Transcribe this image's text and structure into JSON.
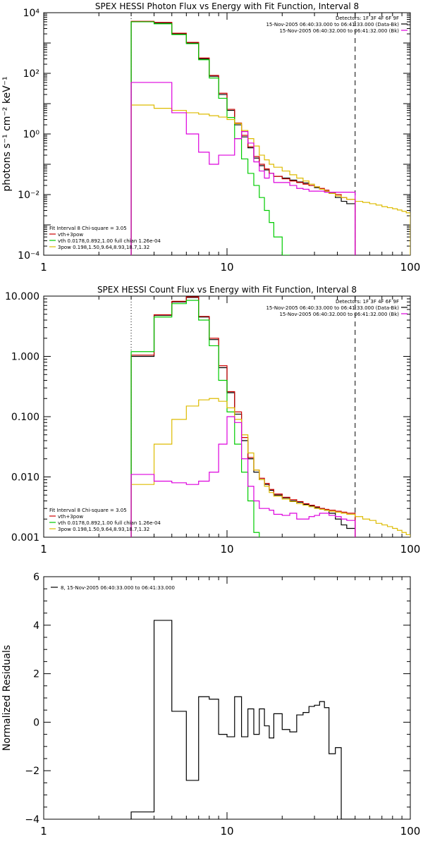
{
  "chart_data": [
    {
      "type": "line",
      "title": "SPEX HESSI Photon Flux vs Energy with Fit Function, Interval 8",
      "xlabel": "",
      "ylabel": "photons s⁻¹ cm⁻² keV⁻¹",
      "x_scale": "log",
      "y_scale": "log",
      "xlim": [
        1,
        100
      ],
      "ylim": [
        0.0001,
        10000
      ],
      "x_ticks": [
        {
          "v": 1,
          "label": "1"
        },
        {
          "v": 10,
          "label": "10"
        },
        {
          "v": 100,
          "label": "100"
        }
      ],
      "y_ticks": [
        {
          "v": 0.0001,
          "label": "10⁻⁴"
        },
        {
          "v": 0.01,
          "label": "10⁻²"
        },
        {
          "v": 1,
          "label": "10⁰"
        },
        {
          "v": 100,
          "label": "10²"
        },
        {
          "v": 10000,
          "label": "10⁴"
        }
      ],
      "legend_top_right": {
        "lines": [
          "Detectors: 1F 3F 4F 6F 9F",
          "15-Nov-2005 06:40:33.000 to 06:41:33.000 (Data-Bk)",
          "15-Nov-2005 06:40:32.000 to 06:41:32.000 (Bk)"
        ],
        "colors": [
          "#000000",
          "#000000",
          "#dd00dd"
        ]
      },
      "legend_bottom_left": {
        "lines": [
          "Fit Interval 8   Chi-square = 3.05",
          "vth+3pow",
          "vth 0.0178,0.892,1.00  full chian 1.26e-04",
          "3pow 0.198,1.50,9.64,8.93,18.7,1.32"
        ],
        "colors": [
          "#000000",
          "#cc0000",
          "#00cc00",
          "#ddbb00"
        ]
      },
      "vlines": [
        {
          "x": 3,
          "style": "dotted",
          "color": "#000000"
        },
        {
          "x": 50,
          "style": "dashed",
          "color": "#000000"
        }
      ],
      "edges": [
        3,
        4,
        5,
        6,
        7,
        8,
        9,
        10,
        11,
        12,
        13,
        14,
        15,
        16,
        17,
        18,
        20,
        22,
        24,
        26,
        28,
        30,
        32,
        34,
        36,
        39,
        42,
        45,
        50,
        55,
        60,
        65,
        70,
        75,
        80,
        85,
        90,
        95,
        100
      ],
      "series": [
        {
          "name": "Data-Bk",
          "color": "#000000",
          "values": [
            5000,
            4500,
            2000,
            1000,
            300,
            80,
            20,
            6,
            2,
            0.8,
            0.35,
            0.16,
            0.09,
            0.065,
            0.05,
            0.04,
            0.035,
            0.03,
            0.026,
            0.024,
            0.02,
            0.017,
            0.015,
            0.013,
            0.011,
            0.008,
            0.006,
            0.005
          ]
        },
        {
          "name": "vth+3pow",
          "color": "#cc0000",
          "values": [
            5200,
            4800,
            2100,
            1050,
            320,
            85,
            22,
            6.5,
            2.3,
            0.9,
            0.38,
            0.18,
            0.1,
            0.07,
            0.05,
            0.04,
            0.033,
            0.028,
            0.025,
            0.022,
            0.02,
            0.018,
            0.016,
            0.014,
            0.012,
            0.01,
            0.008,
            0.007
          ]
        },
        {
          "name": "vth",
          "color": "#00cc00",
          "values": [
            5000,
            4300,
            1900,
            950,
            280,
            70,
            15,
            3.5,
            0.7,
            0.15,
            0.05,
            0.02,
            0.008,
            0.003,
            0.0012,
            0.0004,
            0.0001
          ]
        },
        {
          "name": "3pow",
          "color": "#ddbb00",
          "values": [
            9,
            7,
            6,
            5,
            4.5,
            4,
            3.6,
            3,
            2.2,
            1.3,
            0.7,
            0.4,
            0.2,
            0.14,
            0.1,
            0.08,
            0.06,
            0.045,
            0.035,
            0.028,
            0.022,
            0.018,
            0.015,
            0.013,
            0.011,
            0.009,
            0.008,
            0.007,
            0.006,
            0.0055,
            0.005,
            0.0045,
            0.004,
            0.0037,
            0.0034,
            0.0031,
            0.0028,
            0.0025
          ]
        },
        {
          "name": "Bk",
          "color": "#dd00dd",
          "values": [
            50,
            50,
            5,
            1,
            0.25,
            0.1,
            0.2,
            0.2,
            0.7,
            1.2,
            0.5,
            0.12,
            0.06,
            0.035,
            0.05,
            0.025,
            0.025,
            0.02,
            0.016,
            0.015,
            0.013,
            0.013,
            0.013,
            0.012,
            0.012,
            0.012,
            0.012,
            0.012
          ]
        }
      ]
    },
    {
      "type": "line",
      "title": "SPEX HESSI Count Flux vs Energy with Fit Function, Interval 8",
      "xlabel": "",
      "ylabel": "",
      "x_scale": "log",
      "y_scale": "log",
      "xlim": [
        1,
        100
      ],
      "ylim": [
        0.001,
        10
      ],
      "x_ticks": [
        {
          "v": 1,
          "label": "1"
        },
        {
          "v": 10,
          "label": "10"
        },
        {
          "v": 100,
          "label": "100"
        }
      ],
      "y_ticks": [
        {
          "v": 0.001,
          "label": "0.001"
        },
        {
          "v": 0.01,
          "label": "0.010"
        },
        {
          "v": 0.1,
          "label": "0.100"
        },
        {
          "v": 1,
          "label": "1.000"
        },
        {
          "v": 10,
          "label": "10.000"
        }
      ],
      "legend_top_right": {
        "lines": [
          "Detectors: 1F 3F 4F 6F 9F",
          "15-Nov-2005 06:40:33.000 to 06:41:33.000 (Data-Bk)",
          "15-Nov-2005 06:40:32.000 to 06:41:32.000 (Bk)"
        ],
        "colors": [
          "#000000",
          "#000000",
          "#dd00dd"
        ]
      },
      "legend_bottom_left": {
        "lines": [
          "Fit Interval 8   Chi-square = 3.05",
          "vth+3pow",
          "vth 0.0178,0.892,1.00  full chian 1.26e-04",
          "3pow 0.198,1.50,9.64,8.93,18.7,1.32"
        ],
        "colors": [
          "#000000",
          "#cc0000",
          "#00cc00",
          "#ddbb00"
        ]
      },
      "vlines": [
        {
          "x": 3,
          "style": "dotted",
          "color": "#000000"
        },
        {
          "x": 50,
          "style": "dashed",
          "color": "#000000"
        }
      ],
      "edges": [
        3,
        4,
        5,
        6,
        7,
        8,
        9,
        10,
        11,
        12,
        13,
        14,
        15,
        16,
        17,
        18,
        20,
        22,
        24,
        26,
        28,
        30,
        32,
        34,
        36,
        39,
        42,
        45,
        50,
        55,
        60,
        65,
        70,
        75,
        80,
        85,
        90,
        95,
        100
      ],
      "series": [
        {
          "name": "Data-Bk",
          "color": "#000000",
          "values": [
            1.0,
            4.8,
            8.0,
            9.5,
            4.5,
            1.9,
            0.65,
            0.25,
            0.11,
            0.04,
            0.02,
            0.012,
            0.009,
            0.0075,
            0.006,
            0.005,
            0.0045,
            0.004,
            0.0038,
            0.0035,
            0.0033,
            0.0031,
            0.003,
            0.0028,
            0.0025,
            0.002,
            0.0016,
            0.0014
          ]
        },
        {
          "name": "vth+3pow",
          "color": "#cc0000",
          "values": [
            1.05,
            4.9,
            8.2,
            9.7,
            4.6,
            2.0,
            0.7,
            0.26,
            0.12,
            0.045,
            0.021,
            0.013,
            0.0095,
            0.0078,
            0.0062,
            0.0052,
            0.0046,
            0.0042,
            0.0039,
            0.0036,
            0.0034,
            0.0032,
            0.003,
            0.0029,
            0.0028,
            0.0027,
            0.0026,
            0.0025
          ]
        },
        {
          "name": "vth",
          "color": "#00cc00",
          "values": [
            1.2,
            4.5,
            7.5,
            8.5,
            4.0,
            1.5,
            0.4,
            0.12,
            0.035,
            0.012,
            0.004,
            0.0012
          ]
        },
        {
          "name": "3pow",
          "color": "#ddbb00",
          "values": [
            0.0075,
            0.035,
            0.09,
            0.15,
            0.19,
            0.2,
            0.18,
            0.14,
            0.09,
            0.05,
            0.025,
            0.013,
            0.009,
            0.007,
            0.0055,
            0.0048,
            0.0043,
            0.0039,
            0.0036,
            0.0034,
            0.0032,
            0.003,
            0.0029,
            0.0028,
            0.0027,
            0.0026,
            0.0025,
            0.0024,
            0.0022,
            0.002,
            0.0019,
            0.0017,
            0.0016,
            0.0015,
            0.0014,
            0.0013,
            0.0012,
            0.0011
          ]
        },
        {
          "name": "Bk",
          "color": "#dd00dd",
          "values": [
            0.011,
            0.0085,
            0.008,
            0.0075,
            0.0085,
            0.012,
            0.035,
            0.1,
            0.08,
            0.02,
            0.007,
            0.004,
            0.003,
            0.003,
            0.0028,
            0.0024,
            0.0023,
            0.0025,
            0.002,
            0.002,
            0.0022,
            0.0023,
            0.0025,
            0.0025,
            0.0023,
            0.0022,
            0.002,
            0.0019
          ]
        }
      ]
    },
    {
      "type": "line",
      "title": "",
      "xlabel": "",
      "ylabel": "Normalized Residuals",
      "x_scale": "log",
      "y_scale": "linear",
      "xlim": [
        1,
        100
      ],
      "ylim": [
        -4,
        6
      ],
      "x_ticks": [
        {
          "v": 1,
          "label": "1"
        },
        {
          "v": 10,
          "label": "10"
        },
        {
          "v": 100,
          "label": "100"
        }
      ],
      "y_ticks": [
        {
          "v": -4,
          "label": "−4"
        },
        {
          "v": -2,
          "label": "−2"
        },
        {
          "v": 0,
          "label": "0"
        },
        {
          "v": 2,
          "label": "2"
        },
        {
          "v": 4,
          "label": "4"
        },
        {
          "v": 6,
          "label": "6"
        }
      ],
      "legend_top_left": {
        "lines": [
          "8, 15-Nov-2005 06:40:33.000 to 06:41:33.000"
        ],
        "colors": [
          "#000000"
        ]
      },
      "edges": [
        3,
        4,
        5,
        6,
        7,
        8,
        9,
        10,
        11,
        12,
        13,
        14,
        15,
        16,
        17,
        18,
        20,
        22,
        24,
        26,
        28,
        30,
        32,
        34,
        36,
        39,
        42,
        45,
        50
      ],
      "series": [
        {
          "name": "",
          "color": "#000000",
          "values": [
            -3.7,
            4.2,
            0.45,
            -2.4,
            1.05,
            0.95,
            -0.5,
            -0.6,
            1.05,
            -0.6,
            0.55,
            -0.5,
            0.55,
            -0.15,
            -0.65,
            0.35,
            -0.3,
            -0.4,
            0.3,
            0.4,
            0.65,
            0.7,
            0.85,
            0.6,
            -1.3,
            -1.05,
            -4.0,
            -4.0
          ]
        }
      ]
    }
  ]
}
